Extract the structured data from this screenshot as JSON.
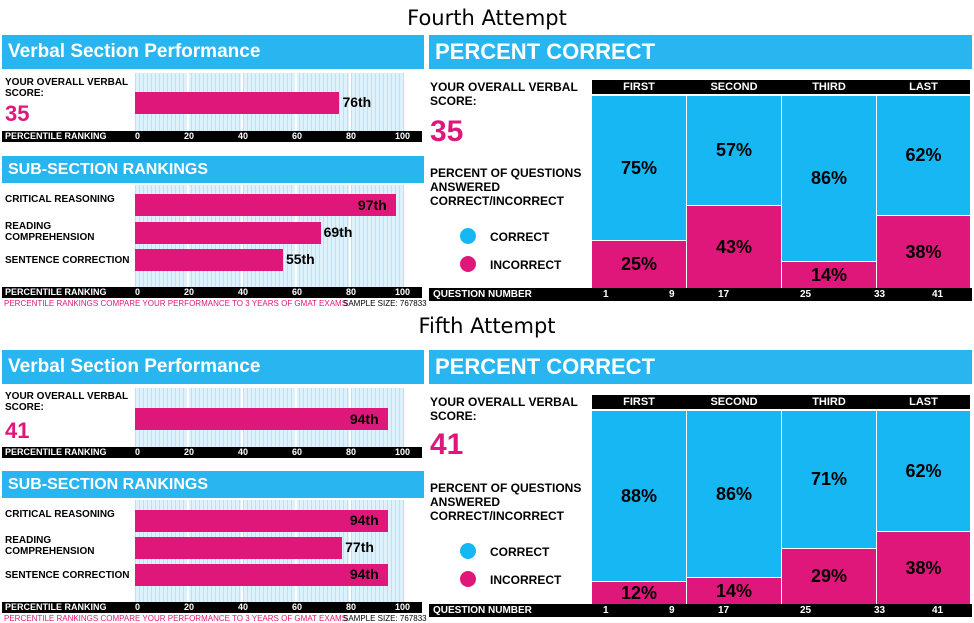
{
  "chart_data": [
    {
      "type": "bar",
      "attempt_title": "Fourth Attempt",
      "left_title": "Verbal Section Performance",
      "overall_label": "YOUR OVERALL VERBAL SCORE:",
      "overall_score": "35",
      "overall_percentile": 76,
      "overall_percentile_label": "76th",
      "percentile_axis_label": "PERCENTILE RANKING",
      "xticks": [
        "0",
        "20",
        "40",
        "60",
        "80",
        "100"
      ],
      "xlim": [
        0,
        100
      ],
      "sub_title": "SUB-SECTION RANKINGS",
      "subsections": [
        {
          "name": "CRITICAL REASONING",
          "value": 97,
          "label": "97th"
        },
        {
          "name": "READING COMPREHENSION",
          "value": 69,
          "label": "69th"
        },
        {
          "name": "SENTENCE CORRECTION",
          "value": 55,
          "label": "55th"
        }
      ],
      "note": "PERCENTILE RANKINGS COMPARE YOUR PERFORMANCE TO 3 YEARS OF GMAT EXAMS",
      "sample": "SAMPLE SIZE: 767833",
      "right_title": "PERCENT CORRECT",
      "right_overall_label": "YOUR OVERALL VERBAL SCORE:",
      "right_score": "35",
      "pq_label": "PERCENT OF QUESTIONS ANSWERED CORRECT/INCORRECT",
      "legend": [
        {
          "name": "CORRECT",
          "color": "#16b7f3"
        },
        {
          "name": "INCORRECT",
          "color": "#e0177a"
        }
      ],
      "categories": [
        "FIRST",
        "SECOND",
        "THIRD",
        "LAST"
      ],
      "correct": [
        75,
        57,
        86,
        62
      ],
      "incorrect": [
        25,
        43,
        14,
        38
      ],
      "correct_labels": [
        "75%",
        "57%",
        "86%",
        "62%"
      ],
      "incorrect_labels": [
        "25%",
        "43%",
        "14%",
        "38%"
      ],
      "question_axis_label": "QUESTION NUMBER",
      "question_ticks": [
        "1",
        "9",
        "17",
        "25",
        "33",
        "41"
      ]
    },
    {
      "type": "bar",
      "attempt_title": "Fifth Attempt",
      "left_title": "Verbal Section Performance",
      "overall_label": "YOUR OVERALL VERBAL SCORE:",
      "overall_score": "41",
      "overall_percentile": 94,
      "overall_percentile_label": "94th",
      "percentile_axis_label": "PERCENTILE RANKING",
      "xticks": [
        "0",
        "20",
        "40",
        "60",
        "80",
        "100"
      ],
      "xlim": [
        0,
        100
      ],
      "sub_title": "SUB-SECTION RANKINGS",
      "subsections": [
        {
          "name": "CRITICAL REASONING",
          "value": 94,
          "label": "94th"
        },
        {
          "name": "READING COMPREHENSION",
          "value": 77,
          "label": "77th"
        },
        {
          "name": "SENTENCE CORRECTION",
          "value": 94,
          "label": "94th"
        }
      ],
      "note": "PERCENTILE RANKINGS COMPARE YOUR PERFORMANCE TO 3 YEARS OF GMAT EXAMS",
      "sample": "SAMPLE SIZE: 767833",
      "right_title": "PERCENT CORRECT",
      "right_overall_label": "YOUR OVERALL VERBAL SCORE:",
      "right_score": "41",
      "pq_label": "PERCENT OF QUESTIONS ANSWERED CORRECT/INCORRECT",
      "legend": [
        {
          "name": "CORRECT",
          "color": "#16b7f3"
        },
        {
          "name": "INCORRECT",
          "color": "#e0177a"
        }
      ],
      "categories": [
        "FIRST",
        "SECOND",
        "THIRD",
        "LAST"
      ],
      "correct": [
        88,
        86,
        71,
        62
      ],
      "incorrect": [
        12,
        14,
        29,
        38
      ],
      "correct_labels": [
        "88%",
        "86%",
        "71%",
        "62%"
      ],
      "incorrect_labels": [
        "12%",
        "14%",
        "29%",
        "38%"
      ],
      "question_axis_label": "QUESTION NUMBER",
      "question_ticks": [
        "1",
        "9",
        "17",
        "25",
        "33",
        "41"
      ]
    }
  ]
}
